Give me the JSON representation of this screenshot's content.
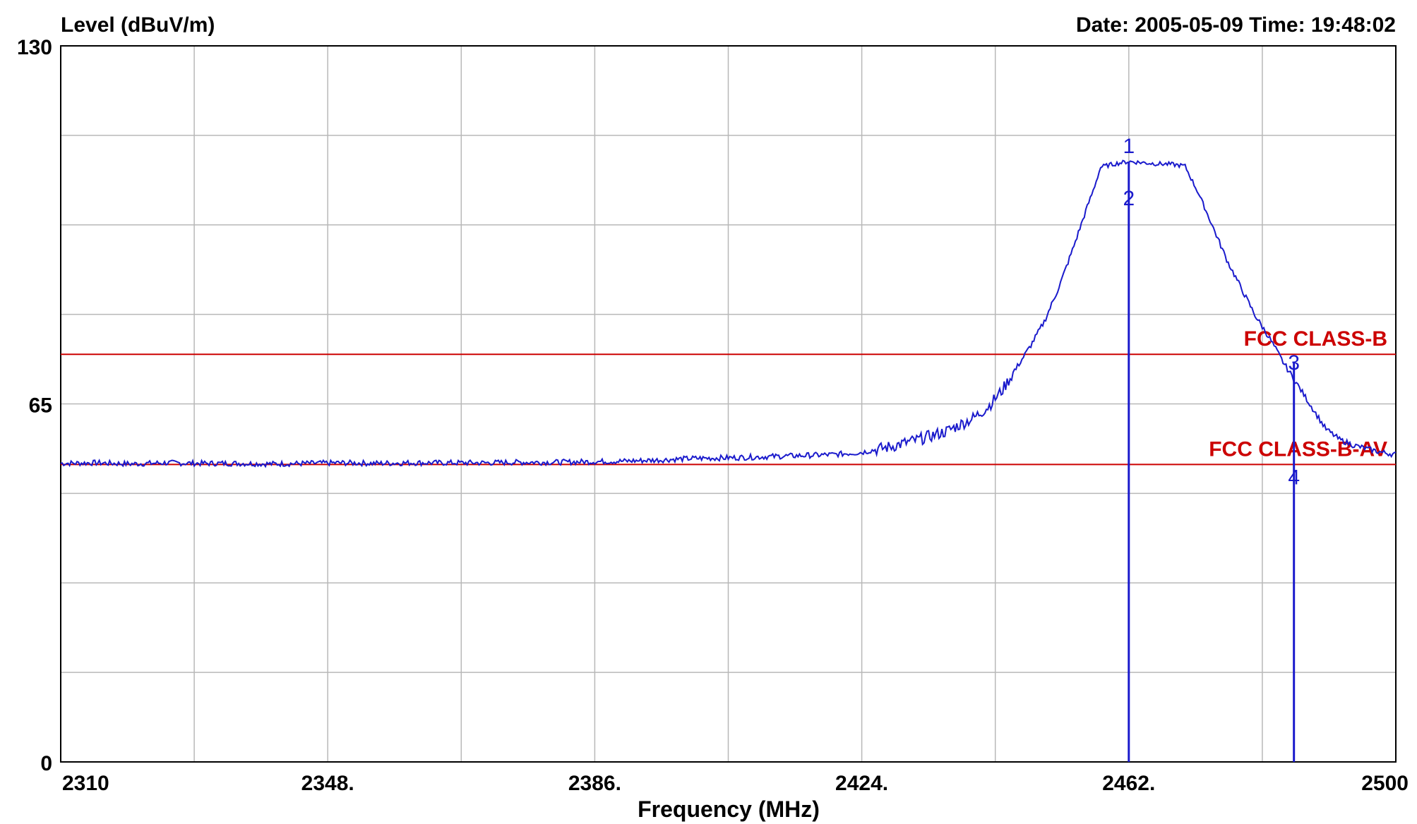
{
  "chart_data": {
    "type": "line",
    "title": "",
    "header_left": "Level (dBuV/m)",
    "header_right": "Date: 2005-05-09  Time: 19:48:02",
    "xlabel": "Frequency (MHz)",
    "ylabel": "Level (dBuV/m)",
    "xlim": [
      2310,
      2500
    ],
    "ylim": [
      0,
      130
    ],
    "grid": true,
    "x_tick_labels": [
      {
        "value": 2310,
        "label": "2310"
      },
      {
        "value": 2348,
        "label": "2348."
      },
      {
        "value": 2386,
        "label": "2386."
      },
      {
        "value": 2424,
        "label": "2424."
      },
      {
        "value": 2462,
        "label": "2462."
      },
      {
        "value": 2500,
        "label": "2500"
      }
    ],
    "x_grid_step": 19,
    "y_tick_labels": [
      {
        "value": 130,
        "label": "130"
      },
      {
        "value": 65,
        "label": "65"
      },
      {
        "value": 0,
        "label": "0"
      }
    ],
    "y_grid_step": 16.25,
    "series": [
      {
        "color": "#1a1acc",
        "points": [
          [
            2310,
            54.2
          ],
          [
            2315,
            54.3
          ],
          [
            2320,
            54.1
          ],
          [
            2325,
            54.3
          ],
          [
            2330,
            54.2
          ],
          [
            2335,
            54.2
          ],
          [
            2340,
            54.1
          ],
          [
            2345,
            54.2
          ],
          [
            2350,
            54.3
          ],
          [
            2355,
            54.2
          ],
          [
            2360,
            54.3
          ],
          [
            2365,
            54.3
          ],
          [
            2370,
            54.3
          ],
          [
            2375,
            54.4
          ],
          [
            2380,
            54.4
          ],
          [
            2385,
            54.5
          ],
          [
            2390,
            54.6
          ],
          [
            2395,
            54.8
          ],
          [
            2400,
            55.1
          ],
          [
            2405,
            55.2
          ],
          [
            2410,
            55.4
          ],
          [
            2415,
            55.6
          ],
          [
            2420,
            55.8
          ],
          [
            2424,
            56.2
          ],
          [
            2428,
            57.2
          ],
          [
            2432,
            58.5
          ],
          [
            2436,
            60.0
          ],
          [
            2440,
            62.5
          ],
          [
            2442,
            64.5
          ],
          [
            2444,
            67.5
          ],
          [
            2446,
            71.5
          ],
          [
            2448,
            75.5
          ],
          [
            2450,
            80.0
          ],
          [
            2452,
            86.0
          ],
          [
            2454,
            93.0
          ],
          [
            2456,
            100.5
          ],
          [
            2457,
            104.0
          ],
          [
            2458,
            108.0
          ],
          [
            2460,
            108.6
          ],
          [
            2462,
            109.0
          ],
          [
            2464,
            108.8
          ],
          [
            2466,
            108.6
          ],
          [
            2468,
            108.5
          ],
          [
            2470,
            108.2
          ],
          [
            2472,
            103.0
          ],
          [
            2474,
            97.0
          ],
          [
            2476,
            91.0
          ],
          [
            2478,
            86.0
          ],
          [
            2480,
            81.0
          ],
          [
            2482,
            77.0
          ],
          [
            2484,
            72.5
          ],
          [
            2486,
            68.5
          ],
          [
            2488,
            64.5
          ],
          [
            2490,
            60.5
          ],
          [
            2492,
            58.5
          ],
          [
            2494,
            57.5
          ],
          [
            2496,
            56.8
          ],
          [
            2498,
            56.2
          ],
          [
            2500,
            55.8
          ]
        ]
      }
    ],
    "limit_lines": [
      {
        "label": "FCC CLASS-B",
        "y": 74,
        "color": "#cc0000"
      },
      {
        "label": "FCC CLASS-B-AV",
        "y": 54,
        "color": "#cc0000"
      }
    ],
    "markers": [
      {
        "label": "1",
        "x": 2462,
        "y": 109.0,
        "label_pos": "above"
      },
      {
        "label": "2",
        "x": 2462,
        "y": 109.0,
        "label_pos": "below"
      },
      {
        "label": "3",
        "x": 2485.5,
        "y": 72.5,
        "label_pos": "right"
      },
      {
        "label": "4",
        "x": 2485.5,
        "y": 54,
        "label_pos": "below"
      }
    ]
  }
}
